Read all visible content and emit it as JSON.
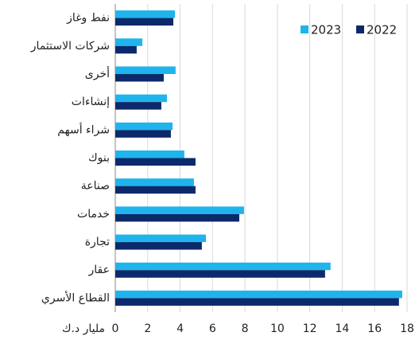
{
  "chart_data": {
    "type": "bar",
    "orientation": "horizontal",
    "x_label": "مليار د.ك",
    "categories": [
      "نفط وغاز",
      "شركات الاستثمار",
      "أخرى",
      "إنشاءات",
      "شراء أسهم",
      "بنوك",
      "صناعة",
      "خدمات",
      "تجارة",
      "عقار",
      "القطاع الأسري"
    ],
    "series": [
      {
        "name": "2023",
        "color": "#1fb4ec",
        "values": [
          3.68,
          1.67,
          3.72,
          3.19,
          3.53,
          4.26,
          4.85,
          7.94,
          5.59,
          13.28,
          17.7
        ]
      },
      {
        "name": "2022",
        "color": "#0c2a6b",
        "values": [
          3.58,
          1.32,
          2.99,
          2.84,
          3.43,
          4.95,
          4.95,
          7.65,
          5.34,
          12.94,
          17.5
        ]
      }
    ],
    "xlim": [
      0,
      18
    ],
    "xticks": [
      0,
      2,
      4,
      6,
      8,
      10,
      12,
      14,
      16,
      18
    ],
    "grid": true,
    "legend": "top-right"
  }
}
